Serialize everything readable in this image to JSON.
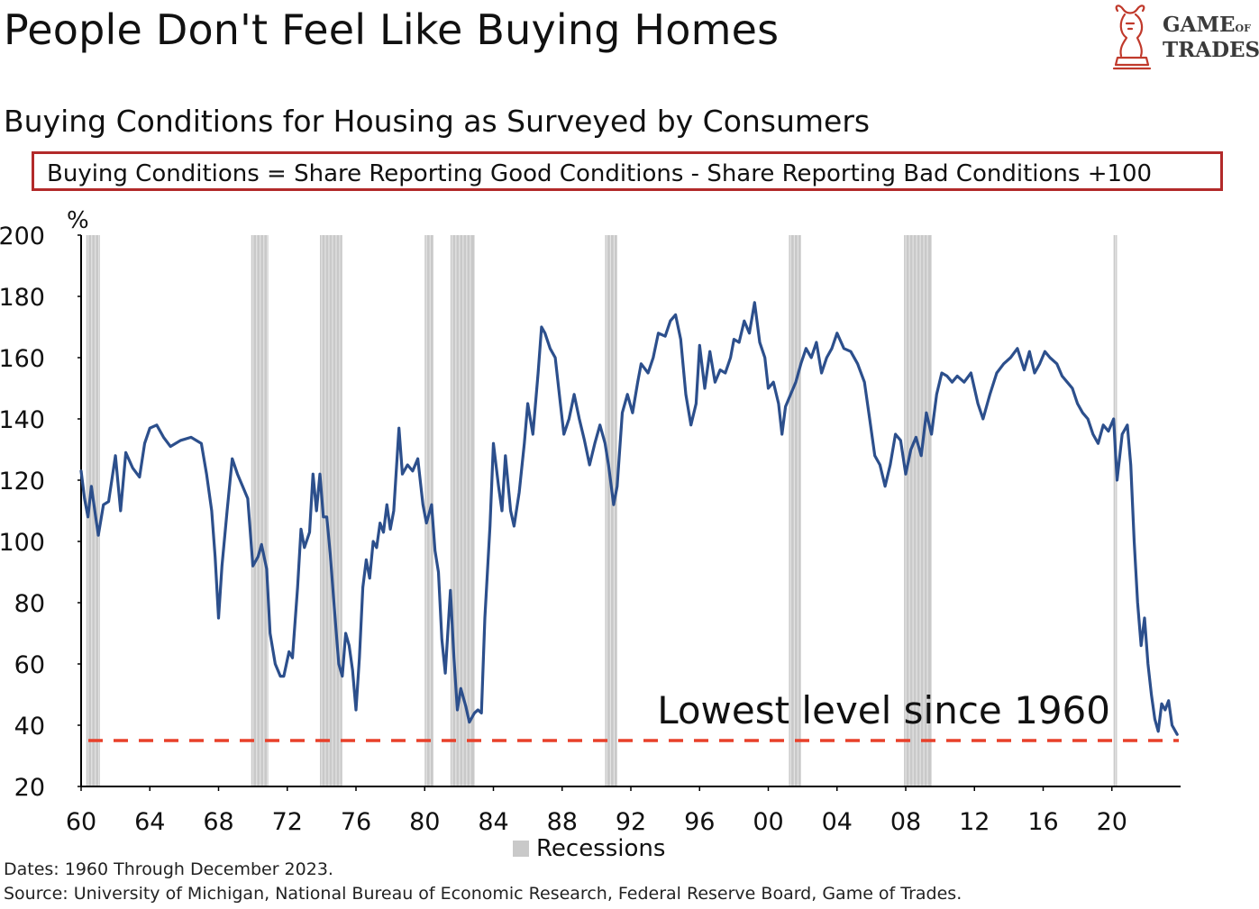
{
  "header": {
    "title": "People Don't Feel Like Buying Homes",
    "subtitle": "Buying Conditions for Housing as Surveyed by Consumers",
    "formula": "Buying Conditions = Share Reporting Good Conditions - Share Reporting Bad Conditions +100"
  },
  "logo": {
    "line1_main": "GAME",
    "line1_small": "OF",
    "line2": "TRADES",
    "icon": "bull-knight-chess-icon"
  },
  "footer": {
    "dates": "Dates: 1960 Through December 2023.",
    "source": "Source: University of Michigan, National Bureau of Economic Research, Federal Reserve Board, Game of Trades."
  },
  "chart_data": {
    "type": "line",
    "title": "Buying Conditions for Housing as Surveyed by Consumers",
    "ylabel": "%",
    "ylim": [
      20,
      200
    ],
    "xlim": [
      1960,
      2024
    ],
    "yticks": [
      "200",
      "180",
      "160",
      "140",
      "120",
      "100",
      "80",
      "60",
      "40",
      "20"
    ],
    "xticks": [
      "60",
      "64",
      "68",
      "72",
      "76",
      "80",
      "84",
      "88",
      "92",
      "96",
      "00",
      "04",
      "08",
      "12",
      "16",
      "20"
    ],
    "legend": {
      "label": "Recessions",
      "position": "bottom-center"
    },
    "annotation": {
      "text": "Lowest level since 1960",
      "y": 35
    },
    "colors": {
      "line": "#2c4f8c",
      "recession": "#c9c9c9",
      "dashed": "#e8402a",
      "box": "#b22a2a"
    },
    "recessions": [
      [
        1960.3,
        1961.1
      ],
      [
        1969.9,
        1970.9
      ],
      [
        1973.9,
        1975.2
      ],
      [
        1980.0,
        1980.5
      ],
      [
        1981.5,
        1982.9
      ],
      [
        1990.5,
        1991.2
      ],
      [
        2001.2,
        2001.9
      ],
      [
        2007.9,
        2009.5
      ],
      [
        2020.1,
        2020.3
      ]
    ],
    "series": [
      {
        "values": [
          [
            1960.0,
            123
          ],
          [
            1960.2,
            114
          ],
          [
            1960.4,
            108
          ],
          [
            1960.6,
            118
          ],
          [
            1960.8,
            110
          ],
          [
            1961.0,
            102
          ],
          [
            1961.3,
            112
          ],
          [
            1961.6,
            113
          ],
          [
            1962.0,
            128
          ],
          [
            1962.3,
            110
          ],
          [
            1962.6,
            129
          ],
          [
            1963.0,
            124
          ],
          [
            1963.4,
            121
          ],
          [
            1963.7,
            132
          ],
          [
            1964.0,
            137
          ],
          [
            1964.4,
            138
          ],
          [
            1964.8,
            134
          ],
          [
            1965.2,
            131
          ],
          [
            1965.8,
            133
          ],
          [
            1966.4,
            134
          ],
          [
            1967.0,
            132
          ],
          [
            1967.3,
            122
          ],
          [
            1967.6,
            110
          ],
          [
            1967.8,
            95
          ],
          [
            1968.0,
            75
          ],
          [
            1968.2,
            92
          ],
          [
            1968.5,
            110
          ],
          [
            1968.8,
            127
          ],
          [
            1969.1,
            122
          ],
          [
            1969.4,
            118
          ],
          [
            1969.7,
            114
          ],
          [
            1970.0,
            92
          ],
          [
            1970.3,
            95
          ],
          [
            1970.5,
            99
          ],
          [
            1970.8,
            91
          ],
          [
            1971.0,
            70
          ],
          [
            1971.3,
            60
          ],
          [
            1971.6,
            56
          ],
          [
            1971.8,
            56
          ],
          [
            1972.1,
            64
          ],
          [
            1972.3,
            62
          ],
          [
            1972.6,
            85
          ],
          [
            1972.8,
            104
          ],
          [
            1973.0,
            98
          ],
          [
            1973.3,
            103
          ],
          [
            1973.5,
            122
          ],
          [
            1973.7,
            110
          ],
          [
            1973.9,
            122
          ],
          [
            1974.1,
            108
          ],
          [
            1974.3,
            108
          ],
          [
            1974.5,
            96
          ],
          [
            1974.8,
            74
          ],
          [
            1975.0,
            60
          ],
          [
            1975.2,
            56
          ],
          [
            1975.4,
            70
          ],
          [
            1975.6,
            66
          ],
          [
            1975.8,
            58
          ],
          [
            1976.0,
            45
          ],
          [
            1976.2,
            62
          ],
          [
            1976.4,
            85
          ],
          [
            1976.6,
            94
          ],
          [
            1976.8,
            88
          ],
          [
            1977.0,
            100
          ],
          [
            1977.2,
            98
          ],
          [
            1977.4,
            106
          ],
          [
            1977.6,
            103
          ],
          [
            1977.8,
            112
          ],
          [
            1978.0,
            104
          ],
          [
            1978.2,
            110
          ],
          [
            1978.5,
            137
          ],
          [
            1978.7,
            122
          ],
          [
            1979.0,
            125
          ],
          [
            1979.3,
            123
          ],
          [
            1979.6,
            127
          ],
          [
            1979.9,
            112
          ],
          [
            1980.1,
            106
          ],
          [
            1980.4,
            112
          ],
          [
            1980.6,
            97
          ],
          [
            1980.8,
            90
          ],
          [
            1981.0,
            68
          ],
          [
            1981.2,
            57
          ],
          [
            1981.5,
            84
          ],
          [
            1981.7,
            62
          ],
          [
            1981.9,
            45
          ],
          [
            1982.1,
            52
          ],
          [
            1982.4,
            46
          ],
          [
            1982.6,
            41
          ],
          [
            1982.9,
            44
          ],
          [
            1983.1,
            45
          ],
          [
            1983.3,
            44
          ],
          [
            1983.5,
            75
          ],
          [
            1983.8,
            105
          ],
          [
            1984.0,
            132
          ],
          [
            1984.3,
            118
          ],
          [
            1984.5,
            110
          ],
          [
            1984.7,
            128
          ],
          [
            1985.0,
            110
          ],
          [
            1985.2,
            105
          ],
          [
            1985.5,
            116
          ],
          [
            1985.8,
            132
          ],
          [
            1986.0,
            145
          ],
          [
            1986.3,
            135
          ],
          [
            1986.6,
            155
          ],
          [
            1986.8,
            170
          ],
          [
            1987.0,
            168
          ],
          [
            1987.3,
            163
          ],
          [
            1987.6,
            160
          ],
          [
            1987.9,
            145
          ],
          [
            1988.1,
            135
          ],
          [
            1988.4,
            140
          ],
          [
            1988.7,
            148
          ],
          [
            1989.0,
            140
          ],
          [
            1989.3,
            133
          ],
          [
            1989.6,
            125
          ],
          [
            1989.9,
            132
          ],
          [
            1990.2,
            138
          ],
          [
            1990.5,
            132
          ],
          [
            1990.7,
            125
          ],
          [
            1991.0,
            112
          ],
          [
            1991.2,
            118
          ],
          [
            1991.5,
            142
          ],
          [
            1991.8,
            148
          ],
          [
            1992.1,
            142
          ],
          [
            1992.4,
            152
          ],
          [
            1992.6,
            158
          ],
          [
            1993.0,
            155
          ],
          [
            1993.3,
            160
          ],
          [
            1993.6,
            168
          ],
          [
            1994.0,
            167
          ],
          [
            1994.3,
            172
          ],
          [
            1994.6,
            174
          ],
          [
            1994.9,
            166
          ],
          [
            1995.2,
            148
          ],
          [
            1995.5,
            138
          ],
          [
            1995.8,
            145
          ],
          [
            1996.0,
            164
          ],
          [
            1996.3,
            150
          ],
          [
            1996.6,
            162
          ],
          [
            1996.9,
            152
          ],
          [
            1997.2,
            156
          ],
          [
            1997.5,
            155
          ],
          [
            1997.8,
            160
          ],
          [
            1998.0,
            166
          ],
          [
            1998.3,
            165
          ],
          [
            1998.6,
            172
          ],
          [
            1998.9,
            168
          ],
          [
            1999.2,
            178
          ],
          [
            1999.5,
            165
          ],
          [
            1999.8,
            160
          ],
          [
            2000.0,
            150
          ],
          [
            2000.3,
            152
          ],
          [
            2000.6,
            145
          ],
          [
            2000.8,
            135
          ],
          [
            2001.0,
            144
          ],
          [
            2001.3,
            148
          ],
          [
            2001.6,
            152
          ],
          [
            2001.9,
            158
          ],
          [
            2002.2,
            163
          ],
          [
            2002.5,
            160
          ],
          [
            2002.8,
            165
          ],
          [
            2003.1,
            155
          ],
          [
            2003.4,
            160
          ],
          [
            2003.7,
            163
          ],
          [
            2004.0,
            168
          ],
          [
            2004.4,
            163
          ],
          [
            2004.8,
            162
          ],
          [
            2005.2,
            158
          ],
          [
            2005.6,
            152
          ],
          [
            2005.9,
            140
          ],
          [
            2006.2,
            128
          ],
          [
            2006.5,
            125
          ],
          [
            2006.8,
            118
          ],
          [
            2007.1,
            125
          ],
          [
            2007.4,
            135
          ],
          [
            2007.7,
            133
          ],
          [
            2008.0,
            122
          ],
          [
            2008.3,
            130
          ],
          [
            2008.6,
            134
          ],
          [
            2008.9,
            128
          ],
          [
            2009.2,
            142
          ],
          [
            2009.5,
            135
          ],
          [
            2009.8,
            148
          ],
          [
            2010.1,
            155
          ],
          [
            2010.4,
            154
          ],
          [
            2010.7,
            152
          ],
          [
            2011.0,
            154
          ],
          [
            2011.4,
            152
          ],
          [
            2011.8,
            155
          ],
          [
            2012.2,
            145
          ],
          [
            2012.5,
            140
          ],
          [
            2012.9,
            148
          ],
          [
            2013.3,
            155
          ],
          [
            2013.7,
            158
          ],
          [
            2014.1,
            160
          ],
          [
            2014.5,
            163
          ],
          [
            2014.9,
            156
          ],
          [
            2015.2,
            162
          ],
          [
            2015.5,
            155
          ],
          [
            2015.8,
            158
          ],
          [
            2016.1,
            162
          ],
          [
            2016.4,
            160
          ],
          [
            2016.8,
            158
          ],
          [
            2017.1,
            154
          ],
          [
            2017.4,
            152
          ],
          [
            2017.7,
            150
          ],
          [
            2018.0,
            145
          ],
          [
            2018.3,
            142
          ],
          [
            2018.6,
            140
          ],
          [
            2018.9,
            135
          ],
          [
            2019.2,
            132
          ],
          [
            2019.5,
            138
          ],
          [
            2019.8,
            136
          ],
          [
            2020.1,
            140
          ],
          [
            2020.3,
            120
          ],
          [
            2020.6,
            135
          ],
          [
            2020.9,
            138
          ],
          [
            2021.1,
            125
          ],
          [
            2021.3,
            100
          ],
          [
            2021.5,
            80
          ],
          [
            2021.7,
            66
          ],
          [
            2021.9,
            75
          ],
          [
            2022.1,
            60
          ],
          [
            2022.3,
            50
          ],
          [
            2022.5,
            42
          ],
          [
            2022.7,
            38
          ],
          [
            2022.9,
            47
          ],
          [
            2023.1,
            45
          ],
          [
            2023.3,
            48
          ],
          [
            2023.5,
            40
          ],
          [
            2023.8,
            37
          ]
        ]
      }
    ]
  }
}
